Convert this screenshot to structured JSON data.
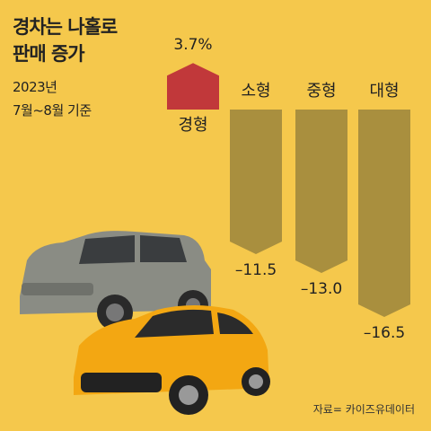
{
  "chart_data": {
    "type": "bar",
    "title": [
      "경차는 나홀로",
      "판매 증가"
    ],
    "subtitle": [
      "2023년",
      "7월~8월 기준"
    ],
    "categories": [
      "경형",
      "소형",
      "중형",
      "대형"
    ],
    "values": [
      3.7,
      -11.5,
      -13.0,
      -16.5
    ],
    "value_labels": [
      "3.7%",
      "–11.5",
      "–13.0",
      "–16.5"
    ],
    "colors": [
      "#c1383a",
      "#a98f3e",
      "#a98f3e",
      "#a98f3e"
    ],
    "source": "자료= 카이즈유데이터"
  }
}
